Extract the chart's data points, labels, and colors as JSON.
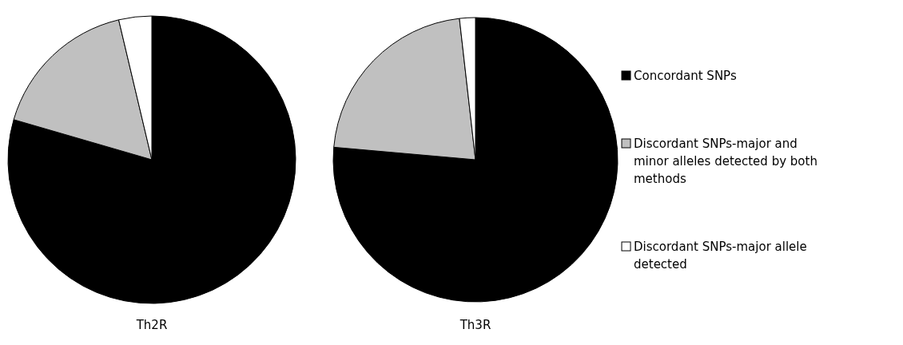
{
  "chart_data": [
    {
      "type": "pie",
      "title": "Th2R",
      "categories": [
        "Concordant SNPs",
        "Discordant SNPs-major and minor alleles detected by both methods",
        "Discordant SNPs-major allele detected"
      ],
      "values": [
        79.5,
        16.8,
        3.7
      ],
      "colors": [
        "#000000",
        "#c0c0c0",
        "#ffffff"
      ],
      "legend": "right"
    },
    {
      "type": "pie",
      "title": "Th3R",
      "values": [
        76.4,
        21.8,
        1.8
      ],
      "colors": [
        "#000000",
        "#c0c0c0",
        "#ffffff"
      ],
      "legend": false
    }
  ]
}
